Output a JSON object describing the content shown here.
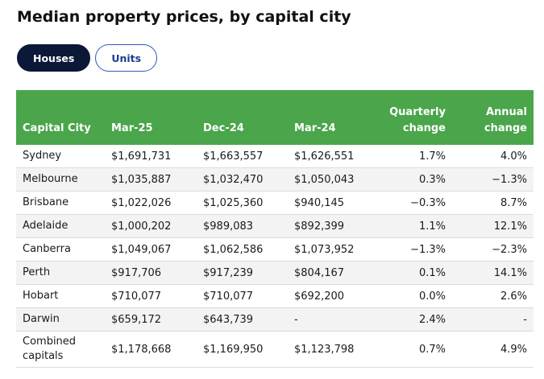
{
  "header": {
    "title": "Median property prices, by capital city"
  },
  "tabs": [
    "Houses",
    "Units"
  ],
  "table": {
    "columns": [
      "Capital City",
      "Mar-25",
      "Dec-24",
      "Mar-24",
      "Quarterly change",
      "Annual change"
    ],
    "rows": [
      [
        "Sydney",
        "$1,691,731",
        "$1,663,557",
        "$1,626,551",
        "1.7%",
        "4.0%"
      ],
      [
        "Melbourne",
        "$1,035,887",
        "$1,032,470",
        "$1,050,043",
        "0.3%",
        "−1.3%"
      ],
      [
        "Brisbane",
        "$1,022,026",
        "$1,025,360",
        "$940,145",
        "−0.3%",
        "8.7%"
      ],
      [
        "Adelaide",
        "$1,000,202",
        "$989,083",
        "$892,399",
        "1.1%",
        "12.1%"
      ],
      [
        "Canberra",
        "$1,049,067",
        "$1,062,586",
        "$1,073,952",
        "−1.3%",
        "−2.3%"
      ],
      [
        "Perth",
        "$917,706",
        "$917,239",
        "$804,167",
        "0.1%",
        "14.1%"
      ],
      [
        "Hobart",
        "$710,077",
        "$710,077",
        "$692,200",
        "0.0%",
        "2.6%"
      ],
      [
        "Darwin",
        "$659,172",
        "$643,739",
        "-",
        "2.4%",
        "-"
      ],
      [
        "Combined capitals",
        "$1,178,668",
        "$1,169,950",
        "$1,123,798",
        "0.7%",
        "4.9%"
      ]
    ]
  }
}
